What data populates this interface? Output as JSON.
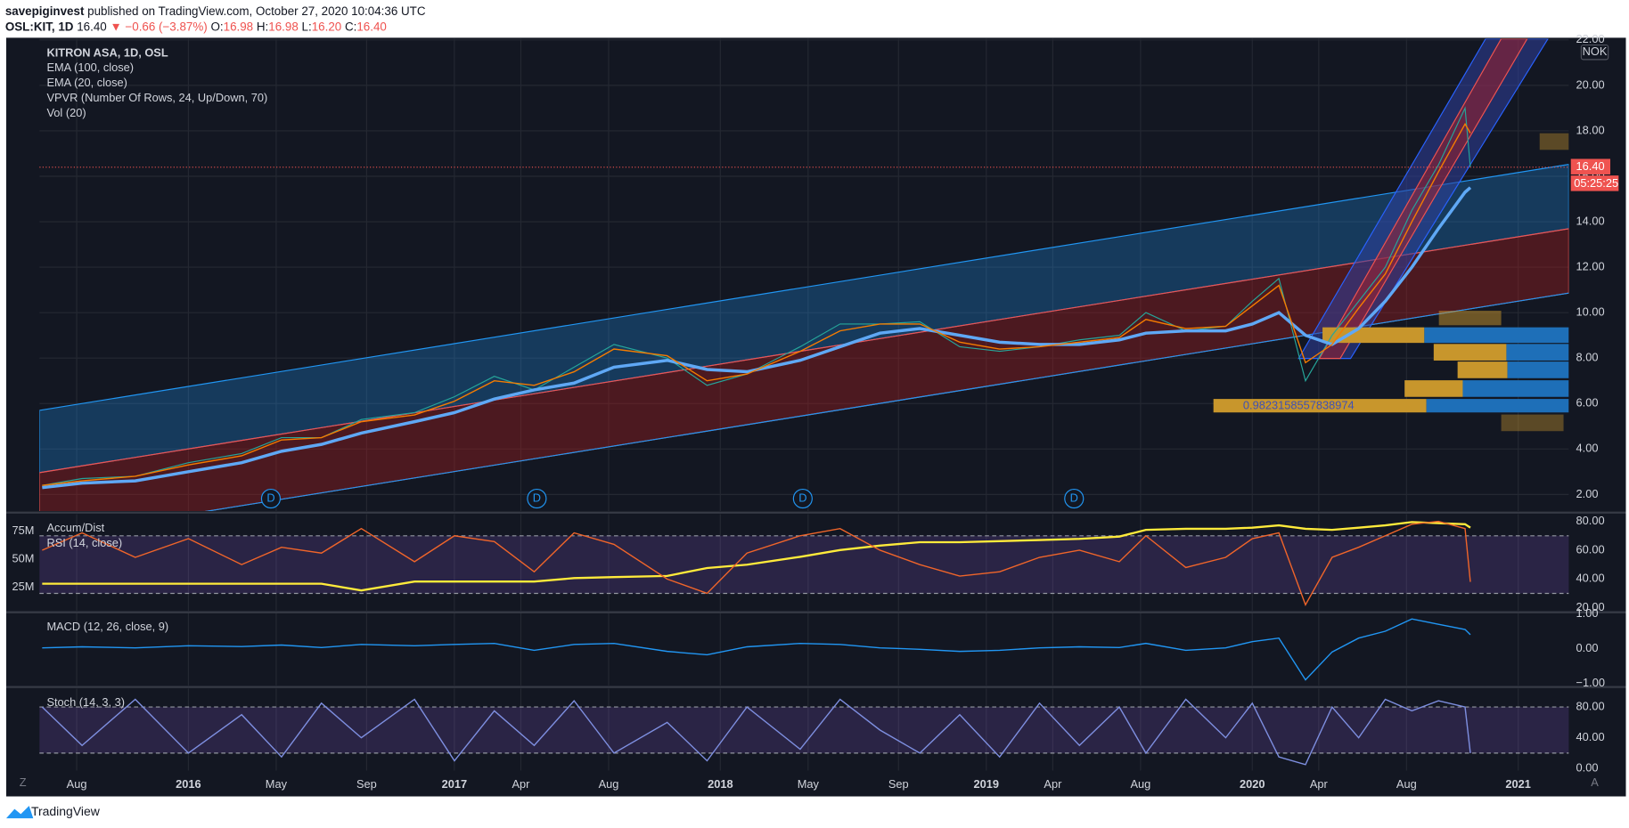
{
  "header": {
    "publisher": "savepiginvest",
    "published_text": "published on TradingView.com, October 27, 2020 10:04:36 UTC",
    "symbol": "OSL:KIT, 1D",
    "last": "16.40",
    "change": "▼ −0.66 (−3.87%)",
    "open_label": "O:",
    "open": "16.98",
    "high_label": "H:",
    "high": "16.98",
    "low_label": "L:",
    "low": "16.20",
    "close_label": "C:",
    "close": "16.40"
  },
  "chart_data": [
    {
      "type": "line",
      "ylim": [
        1.27,
        22.05
      ],
      "yticks": [
        {
          "value": 2,
          "label": "2.00"
        },
        {
          "value": 4,
          "label": "4.00"
        },
        {
          "value": 6,
          "label": "6.00"
        },
        {
          "value": 8,
          "label": "8.00"
        },
        {
          "value": 10,
          "label": "10.00"
        },
        {
          "value": 12,
          "label": "12.00"
        },
        {
          "value": 14,
          "label": "14.00"
        },
        {
          "value": 16,
          "label": "16.00"
        },
        {
          "value": 18,
          "label": "18.00"
        },
        {
          "value": 20,
          "label": "20.00"
        },
        {
          "value": 22,
          "label": "22.00"
        }
      ],
      "xlim": [
        2015.44,
        2021.19
      ],
      "xticks": [
        {
          "value": 2015.58,
          "label": "Aug"
        },
        {
          "value": 2016,
          "label": "2016"
        },
        {
          "value": 2016.33,
          "label": "May"
        },
        {
          "value": 2016.67,
          "label": "Sep"
        },
        {
          "value": 2017,
          "label": "2017"
        },
        {
          "value": 2017.25,
          "label": "Apr"
        },
        {
          "value": 2017.58,
          "label": "Aug"
        },
        {
          "value": 2018,
          "label": "2018"
        },
        {
          "value": 2018.33,
          "label": "May"
        },
        {
          "value": 2018.67,
          "label": "Sep"
        },
        {
          "value": 2019,
          "label": "2019"
        },
        {
          "value": 2019.25,
          "label": "Apr"
        },
        {
          "value": 2019.58,
          "label": "Aug"
        },
        {
          "value": 2020,
          "label": "2020"
        },
        {
          "value": 2020.25,
          "label": "Apr"
        },
        {
          "value": 2020.58,
          "label": "Aug"
        },
        {
          "value": 2021,
          "label": "2021"
        }
      ],
      "grid": true,
      "x": [
        2015.45,
        2015.6,
        2015.8,
        2016.0,
        2016.2,
        2016.35,
        2016.5,
        2016.65,
        2016.85,
        2017.0,
        2017.15,
        2017.3,
        2017.45,
        2017.6,
        2017.8,
        2017.95,
        2018.1,
        2018.3,
        2018.45,
        2018.6,
        2018.75,
        2018.9,
        2019.05,
        2019.2,
        2019.35,
        2019.5,
        2019.6,
        2019.75,
        2019.9,
        2020.0,
        2020.1,
        2020.2,
        2020.3,
        2020.4,
        2020.5,
        2020.6,
        2020.7,
        2020.8,
        2020.82
      ],
      "series": [
        {
          "name": "KITRON ASA, 1D, OSL",
          "color": "#26a69a",
          "width": 1,
          "values": [
            2.4,
            2.7,
            2.8,
            3.4,
            3.8,
            4.5,
            4.5,
            5.3,
            5.6,
            6.3,
            7.2,
            6.6,
            7.6,
            8.6,
            8.0,
            6.8,
            7.3,
            8.5,
            9.5,
            9.5,
            9.6,
            8.5,
            8.3,
            8.5,
            8.8,
            9.0,
            10.0,
            9.2,
            9.4,
            10.5,
            11.5,
            7.0,
            9.0,
            10.5,
            12.0,
            14.5,
            16.5,
            19.0,
            16.4
          ]
        },
        {
          "name": "EMA (100, close)",
          "color": "#5fa8f5",
          "width": 3,
          "values": [
            2.3,
            2.5,
            2.6,
            3.0,
            3.4,
            3.9,
            4.2,
            4.7,
            5.2,
            5.6,
            6.2,
            6.6,
            6.9,
            7.6,
            7.9,
            7.5,
            7.4,
            7.9,
            8.5,
            9.1,
            9.3,
            9.0,
            8.7,
            8.6,
            8.6,
            8.8,
            9.1,
            9.2,
            9.2,
            9.5,
            10.0,
            9.0,
            8.6,
            9.3,
            10.5,
            12.0,
            13.7,
            15.3,
            15.5
          ]
        },
        {
          "name": "EMA (20, close)",
          "color": "#f57c00",
          "width": 1.2,
          "values": [
            2.4,
            2.6,
            2.8,
            3.3,
            3.7,
            4.4,
            4.5,
            5.2,
            5.5,
            6.1,
            7.0,
            6.8,
            7.4,
            8.4,
            8.1,
            7.0,
            7.3,
            8.3,
            9.2,
            9.5,
            9.5,
            8.7,
            8.4,
            8.5,
            8.7,
            8.9,
            9.7,
            9.3,
            9.4,
            10.3,
            11.2,
            7.8,
            8.6,
            10.2,
            11.7,
            14.0,
            16.2,
            18.3,
            17.9
          ]
        }
      ],
      "indicators": [
        "VPVR (Number Of Rows, 24, Up/Down, 70)",
        "Vol (20)"
      ],
      "last_price": {
        "value": 16.4,
        "label": "16.40"
      },
      "countdown": "05:25:25",
      "currency": "NOK",
      "dividends": [
        {
          "x": 2016.31,
          "label": "D"
        },
        {
          "x": 2017.31,
          "label": "D"
        },
        {
          "x": 2018.31,
          "label": "D"
        },
        {
          "x": 2019.33,
          "label": "D"
        }
      ],
      "vpvr_label": "0.9823158557838974"
    },
    {
      "type": "line",
      "ylim": [
        18,
        85
      ],
      "yticks": [
        {
          "value": 20,
          "label": "20.00"
        },
        {
          "value": 40,
          "label": "40.00"
        },
        {
          "value": 60,
          "label": "60.00"
        },
        {
          "value": 80,
          "label": "80.00"
        }
      ],
      "y2lim": [
        4000000,
        90000000
      ],
      "y2ticks": [
        {
          "value": 25000000,
          "label": "25M"
        },
        {
          "value": 50000000,
          "label": "50M"
        },
        {
          "value": 75000000,
          "label": "75M"
        }
      ],
      "levels": [
        30,
        70
      ],
      "x": [
        2015.45,
        2015.6,
        2015.8,
        2016.0,
        2016.2,
        2016.35,
        2016.5,
        2016.65,
        2016.85,
        2017.0,
        2017.15,
        2017.3,
        2017.45,
        2017.6,
        2017.8,
        2017.95,
        2018.1,
        2018.3,
        2018.45,
        2018.6,
        2018.75,
        2018.9,
        2019.05,
        2019.2,
        2019.35,
        2019.5,
        2019.6,
        2019.75,
        2019.9,
        2020.0,
        2020.1,
        2020.2,
        2020.3,
        2020.4,
        2020.5,
        2020.6,
        2020.7,
        2020.8,
        2020.82
      ],
      "series": [
        {
          "name": "Accum/Dist",
          "color": "#ffeb3b",
          "width": 2,
          "axis": "y2",
          "values": [
            28000000,
            28000000,
            28000000,
            28000000,
            28000000,
            28000000,
            28000000,
            22000000,
            30000000,
            30000000,
            30000000,
            30000000,
            33000000,
            34000000,
            35000000,
            42000000,
            45000000,
            52000000,
            58000000,
            62000000,
            65000000,
            65000000,
            66000000,
            67000000,
            68000000,
            70000000,
            76000000,
            77000000,
            77000000,
            78000000,
            80000000,
            77000000,
            76000000,
            78000000,
            80000000,
            83000000,
            82000000,
            81000000,
            78000000
          ]
        },
        {
          "name": "RSI (14, close)",
          "color": "#f0652a",
          "width": 1.2,
          "values": [
            60,
            72,
            55,
            68,
            50,
            62,
            58,
            75,
            52,
            70,
            66,
            45,
            72,
            64,
            40,
            30,
            58,
            70,
            75,
            60,
            50,
            42,
            45,
            55,
            60,
            52,
            70,
            48,
            55,
            68,
            72,
            22,
            55,
            62,
            70,
            78,
            80,
            75,
            38
          ]
        }
      ]
    },
    {
      "type": "line",
      "ylim": [
        -1.06,
        1.03
      ],
      "yticks": [
        {
          "value": -1,
          "label": "−1.00"
        },
        {
          "value": 0,
          "label": "0.00"
        },
        {
          "value": 1,
          "label": "1.00"
        }
      ],
      "x": [
        2015.45,
        2015.6,
        2015.8,
        2016.0,
        2016.2,
        2016.35,
        2016.5,
        2016.65,
        2016.85,
        2017.0,
        2017.15,
        2017.3,
        2017.45,
        2017.6,
        2017.8,
        2017.95,
        2018.1,
        2018.3,
        2018.45,
        2018.6,
        2018.75,
        2018.9,
        2019.05,
        2019.2,
        2019.35,
        2019.5,
        2019.6,
        2019.75,
        2019.9,
        2020.0,
        2020.1,
        2020.2,
        2020.3,
        2020.4,
        2020.5,
        2020.6,
        2020.7,
        2020.8,
        2020.82
      ],
      "series": [
        {
          "name": "MACD (12, 26, close, 9)",
          "color": "#2196f3",
          "width": 1.2,
          "values": [
            0.02,
            0.05,
            0.02,
            0.08,
            0.06,
            0.1,
            0.03,
            0.12,
            0.08,
            0.12,
            0.15,
            -0.05,
            0.12,
            0.15,
            -0.08,
            -0.18,
            0.05,
            0.15,
            0.12,
            0.02,
            -0.02,
            -0.08,
            -0.05,
            0.02,
            0.05,
            0.03,
            0.15,
            -0.05,
            0.02,
            0.2,
            0.3,
            -0.9,
            -0.1,
            0.3,
            0.5,
            0.85,
            0.7,
            0.55,
            0.4
          ]
        }
      ]
    },
    {
      "type": "line",
      "ylim": [
        -2.7,
        104
      ],
      "yticks": [
        {
          "value": 0,
          "label": "0.00"
        },
        {
          "value": 40,
          "label": "40.00"
        },
        {
          "value": 80,
          "label": "80.00"
        }
      ],
      "levels": [
        20,
        80
      ],
      "x": [
        2015.45,
        2015.6,
        2015.8,
        2016.0,
        2016.2,
        2016.35,
        2016.5,
        2016.65,
        2016.85,
        2017.0,
        2017.15,
        2017.3,
        2017.45,
        2017.6,
        2017.8,
        2017.95,
        2018.1,
        2018.3,
        2018.45,
        2018.6,
        2018.75,
        2018.9,
        2019.05,
        2019.2,
        2019.35,
        2019.5,
        2019.6,
        2019.75,
        2019.9,
        2020.0,
        2020.1,
        2020.2,
        2020.3,
        2020.4,
        2020.5,
        2020.6,
        2020.7,
        2020.8,
        2020.82
      ],
      "series": [
        {
          "name": "Stoch (14, 3, 3)",
          "color": "#7e8fe0",
          "width": 1.2,
          "values": [
            80,
            30,
            90,
            20,
            70,
            15,
            85,
            40,
            90,
            10,
            75,
            30,
            88,
            20,
            60,
            10,
            80,
            25,
            90,
            50,
            20,
            70,
            15,
            85,
            30,
            80,
            20,
            90,
            40,
            85,
            15,
            5,
            80,
            40,
            90,
            75,
            88,
            80,
            20
          ]
        }
      ]
    }
  ],
  "buttons": [
    "Z",
    "A"
  ],
  "footer": "TradingView"
}
